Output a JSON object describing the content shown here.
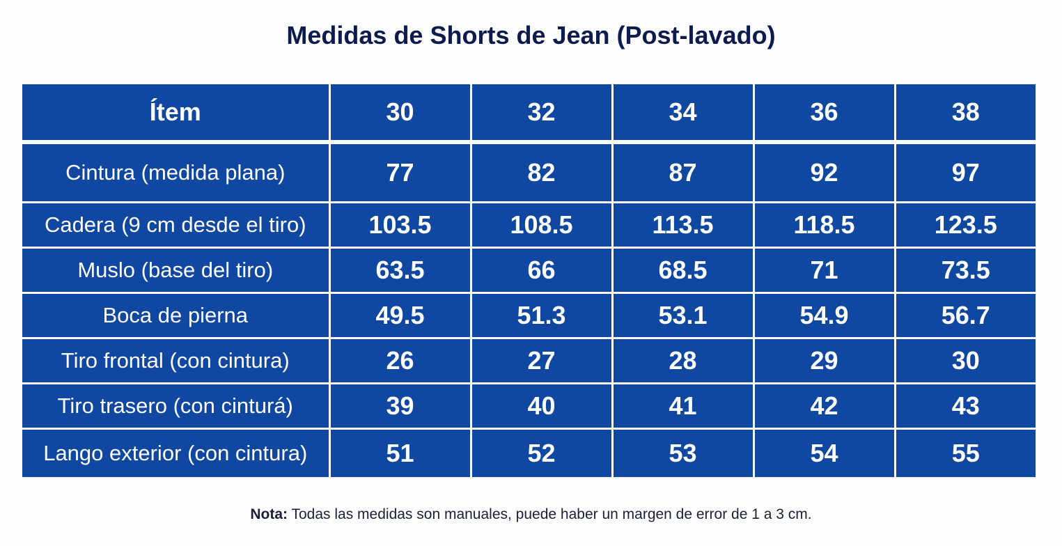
{
  "title": "Medidas de Shorts de Jean (Post-lavado)",
  "table": {
    "headers": [
      "Ítem",
      "30",
      "32",
      "34",
      "36",
      "38"
    ],
    "rows": [
      {
        "label": "Cintura (medida plana)",
        "values": [
          "77",
          "82",
          "87",
          "92",
          "97"
        ]
      },
      {
        "label": "Cadera (9 cm desde el tiro)",
        "values": [
          "103.5",
          "108.5",
          "113.5",
          "118.5",
          "123.5"
        ]
      },
      {
        "label": "Muslo (base del tiro)",
        "values": [
          "63.5",
          "66",
          "68.5",
          "71",
          "73.5"
        ]
      },
      {
        "label": "Boca de pierna",
        "values": [
          "49.5",
          "51.3",
          "53.1",
          "54.9",
          "56.7"
        ]
      },
      {
        "label": "Tiro frontal (con cintura)",
        "values": [
          "26",
          "27",
          "28",
          "29",
          "30"
        ]
      },
      {
        "label": "Tiro trasero (con cinturá)",
        "values": [
          "39",
          "40",
          "41",
          "42",
          "43"
        ]
      },
      {
        "label": "Lango exterior (con cintura)",
        "values": [
          "51",
          "52",
          "53",
          "54",
          "55"
        ]
      }
    ]
  },
  "note": {
    "prefix": "Nota:",
    "text": " Todas las medidas son manuales, puede haber un margen de error de 1 a 3 cm."
  },
  "colors": {
    "cell_background": "#0f47a1",
    "title": "#0e1b4d",
    "grid_lines": "#ffffff"
  }
}
